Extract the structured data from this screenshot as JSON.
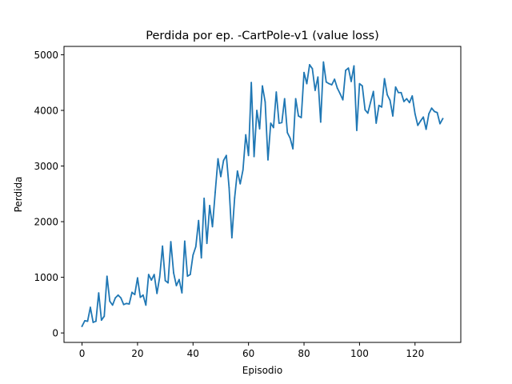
{
  "chart_data": {
    "type": "line",
    "title": "Perdida por ep. -CartPole-v1 (value loss)",
    "xlabel": "Episodio",
    "ylabel": "Perdida",
    "xlim": [
      -6.5,
      136.5
    ],
    "ylim": [
      -170,
      5150
    ],
    "xticks": [
      0,
      20,
      40,
      60,
      80,
      100,
      120
    ],
    "yticks": [
      0,
      1000,
      2000,
      3000,
      4000,
      5000
    ],
    "grid": false,
    "color": "#1f77b4",
    "series": [
      {
        "x": [
          0,
          1,
          2,
          3,
          4,
          5,
          6,
          7,
          8,
          9,
          10,
          11,
          12,
          13,
          14,
          15,
          16,
          17,
          18,
          19,
          20,
          21,
          22,
          23,
          24,
          25,
          26,
          27,
          28,
          29,
          30,
          31,
          32,
          33,
          34,
          35,
          36,
          37,
          38,
          39,
          40,
          41,
          42,
          43,
          44,
          45,
          46,
          47,
          48,
          49,
          50,
          51,
          52,
          53,
          54,
          55,
          56,
          57,
          58,
          59,
          60,
          61,
          62,
          63,
          64,
          65,
          66,
          67,
          68,
          69,
          70,
          71,
          72,
          73,
          74,
          75,
          76,
          77,
          78,
          79,
          80,
          81,
          82,
          83,
          84,
          85,
          86,
          87,
          88,
          89,
          90,
          91,
          92,
          93,
          94,
          95,
          96,
          97,
          98,
          99,
          100,
          101,
          102,
          103,
          104,
          105,
          106,
          107,
          108,
          109,
          110,
          111,
          112,
          113,
          114,
          115,
          116,
          117,
          118,
          119,
          120,
          121,
          122,
          123,
          124,
          125,
          126,
          127,
          128,
          129,
          130
        ],
        "values": [
          120,
          220,
          210,
          460,
          190,
          210,
          720,
          230,
          300,
          1020,
          570,
          500,
          630,
          680,
          630,
          510,
          530,
          520,
          730,
          690,
          990,
          640,
          680,
          500,
          1050,
          950,
          1050,
          710,
          1010,
          1560,
          940,
          900,
          1640,
          1080,
          850,
          960,
          720,
          1650,
          1020,
          1050,
          1400,
          1550,
          2020,
          1350,
          2420,
          1610,
          2290,
          1910,
          2530,
          3130,
          2810,
          3100,
          3190,
          2610,
          1710,
          2430,
          2910,
          2680,
          2930,
          3560,
          3190,
          4500,
          3170,
          4000,
          3670,
          4440,
          4150,
          3110,
          3770,
          3690,
          4330,
          3770,
          3780,
          4210,
          3600,
          3500,
          3310,
          4210,
          3900,
          3870,
          4680,
          4480,
          4820,
          4750,
          4360,
          4600,
          3790,
          4870,
          4510,
          4480,
          4460,
          4560,
          4400,
          4300,
          4190,
          4720,
          4760,
          4520,
          4800,
          3640,
          4480,
          4440,
          4010,
          3950,
          4150,
          4340,
          3770,
          4090,
          4060,
          4570,
          4280,
          4180,
          3900,
          4420,
          4320,
          4320,
          4160,
          4210,
          4140,
          4260,
          3940,
          3730,
          3810,
          3880,
          3660,
          3940,
          4040,
          3980,
          3960,
          3760,
          3850
        ]
      }
    ]
  }
}
